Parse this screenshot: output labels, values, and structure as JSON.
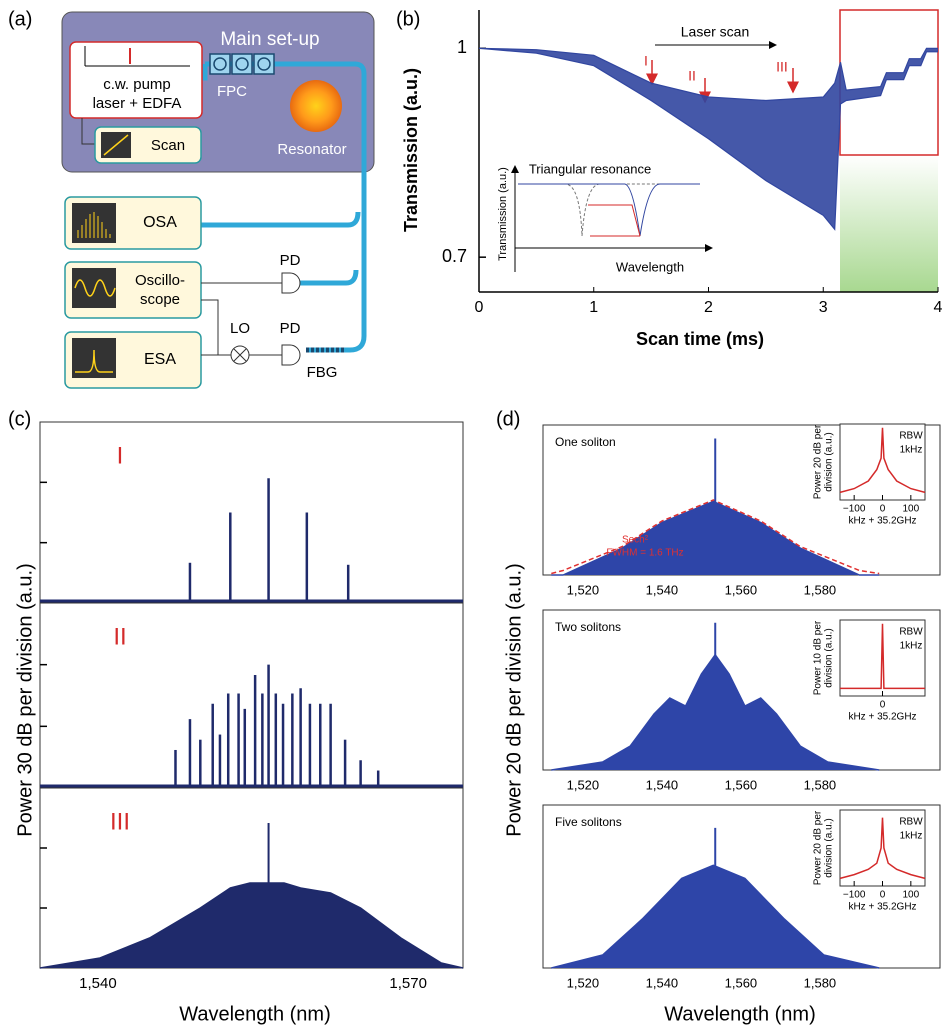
{
  "panel_labels": [
    "(a)",
    "(b)",
    "(c)",
    "(d)"
  ],
  "diagram": {
    "title": "Main set-up",
    "pump": [
      "c.w. pump",
      "laser + EDFA"
    ],
    "scan": "Scan",
    "fpc": "FPC",
    "resonator": "Resonator",
    "osa": "OSA",
    "oscilloscope": [
      "Oscillo-",
      "scope"
    ],
    "esa": "ESA",
    "pd": [
      "PD",
      "PD"
    ],
    "lo": "LO",
    "fbg": "FBG"
  },
  "chart_data": [
    {
      "type": "band",
      "xlabel": "Scan time (ms)",
      "ylabel": "Transmission (a.u.)",
      "annotations": [
        "Laser scan",
        "I",
        "II",
        "III"
      ],
      "inset": {
        "title": "Triangular resonance",
        "ylabel": "Transmission (a.u.)",
        "xlabel": "Wavelength"
      },
      "x": [
        0,
        0.5,
        1,
        1.5,
        2,
        2.5,
        3,
        3.1,
        3.15,
        3.2,
        3.5,
        3.55,
        3.7,
        3.75,
        3.85,
        3.9,
        4
      ],
      "series": [
        {
          "color": "#3146a0",
          "values": [
            1,
            0.998,
            0.99,
            0.95,
            0.93,
            0.925,
            0.93,
            0.95,
            0.98,
            0.94,
            0.945,
            0.965,
            0.965,
            0.985,
            0.985,
            1.0,
            1.0
          ]
        },
        {
          "color": "#3146a0",
          "values": [
            1,
            0.993,
            0.975,
            0.925,
            0.87,
            0.81,
            0.76,
            0.74,
            0.92,
            0.925,
            0.932,
            0.955,
            0.955,
            0.975,
            0.975,
            0.995,
            0.995
          ]
        }
      ],
      "xlim": [
        0,
        4
      ],
      "ylim": [
        0.65,
        1.055
      ],
      "xticks": [
        0,
        1,
        2,
        3,
        4
      ],
      "yticks": [
        0.7,
        1
      ]
    },
    {
      "type": "comb",
      "label": "I",
      "ylabel": "Power 30 dB per division (a.u.)",
      "color": "#1f2a6b",
      "x": [
        1548.9,
        1552.8,
        1556.5,
        1560.2,
        1564.2
      ],
      "values": [
        20,
        45,
        62,
        45,
        19
      ],
      "xlim": [
        1534.4,
        1575.3
      ],
      "ylim": [
        0,
        90
      ],
      "yticks": [
        30,
        60
      ]
    },
    {
      "type": "comb",
      "label": "II",
      "color": "#1f2a6b",
      "x": [
        1547.5,
        1548.9,
        1549.9,
        1551.1,
        1551.8,
        1552.6,
        1553.6,
        1554.2,
        1555.2,
        1555.9,
        1556.5,
        1557.2,
        1557.9,
        1558.8,
        1559.6,
        1560.5,
        1561.5,
        1562.5,
        1563.9,
        1565.4,
        1567.1
      ],
      "values": [
        18.5,
        33.5,
        23.5,
        41,
        26,
        46,
        46,
        38.5,
        55,
        46,
        60,
        46,
        41,
        46,
        48.5,
        41,
        41,
        41,
        23.5,
        13.5,
        8.5
      ],
      "xlim": [
        1534.4,
        1575.3
      ],
      "ylim": [
        0,
        90
      ],
      "yticks": [
        30,
        60
      ]
    },
    {
      "type": "area",
      "label": "III",
      "xlabel": "Wavelength  (nm)",
      "x": [
        1534.4,
        1540.2,
        1545,
        1549.9,
        1552.8,
        1554.7,
        1558,
        1559.6,
        1562.5,
        1565.4,
        1569.3,
        1573.2,
        1575.3
      ],
      "series": [
        {
          "color": "#1f2a6b",
          "values": [
            0,
            5,
            15,
            30,
            40,
            42.5,
            42.5,
            40,
            37.5,
            30,
            15,
            2.5,
            0
          ]
        }
      ],
      "peak": {
        "x": 1556.5,
        "value": 72.5
      },
      "xlim": [
        1534.4,
        1575.3
      ],
      "ylim": [
        0,
        90
      ],
      "yticks": [
        30,
        60
      ],
      "xticks": [
        {
          "value": 1540,
          "label": "1,540"
        },
        {
          "value": 1570,
          "label": "1,570"
        }
      ]
    },
    {
      "type": "area",
      "title": "One soliton",
      "ylabel": "Power 20 dB per division (a.u.)",
      "annotations": [
        "Sech²",
        "FWHM = 1.6 THz"
      ],
      "x": [
        1512,
        1515,
        1530,
        1540,
        1553,
        1565,
        1575,
        1590,
        1595
      ],
      "series": [
        {
          "color": "#2e45a8",
          "values": [
            0,
            0,
            18,
            35,
            49,
            35,
            18,
            0,
            0
          ]
        },
        {
          "color": "#e03030",
          "dashed": true,
          "values": [
            1,
            3,
            19,
            36,
            50,
            36,
            19,
            3,
            1
          ]
        }
      ],
      "peak": {
        "x": 1553.5,
        "value": 91
      },
      "xlim": [
        1509.9,
        1610.4
      ],
      "ylim": [
        0,
        100
      ],
      "xticks": [
        {
          "value": 1520,
          "label": "1,520"
        },
        {
          "value": 1540,
          "label": "1,540"
        },
        {
          "value": 1560,
          "label": "1,560"
        },
        {
          "value": 1580,
          "label": "1,580"
        }
      ]
    },
    {
      "type": "area",
      "title": "Two solitons",
      "x": [
        1512,
        1525,
        1532,
        1538,
        1542,
        1546,
        1550,
        1553.5,
        1557,
        1561,
        1565,
        1569,
        1575,
        1582,
        1595
      ],
      "series": [
        {
          "color": "#2e45a8",
          "values": [
            0,
            5,
            15,
            35,
            45,
            40,
            60,
            72,
            60,
            40,
            45,
            35,
            15,
            5,
            0
          ]
        }
      ],
      "peak": {
        "x": 1553.5,
        "value": 92
      },
      "xlim": [
        1509.9,
        1610.4
      ],
      "ylim": [
        0,
        100
      ],
      "xticks": [
        {
          "value": 1520,
          "label": "1,520"
        },
        {
          "value": 1540,
          "label": "1,540"
        },
        {
          "value": 1560,
          "label": "1,560"
        },
        {
          "value": 1580,
          "label": "1,580"
        }
      ]
    },
    {
      "type": "area",
      "title": "Five solitons",
      "xlabel": "Wavelength  (nm)",
      "x": [
        1512,
        1525,
        1535,
        1545,
        1553,
        1561,
        1571,
        1581,
        1595
      ],
      "series": [
        {
          "color": "#2e45a8",
          "values": [
            0,
            8,
            30,
            55,
            63,
            55,
            30,
            8,
            0
          ]
        }
      ],
      "peak": {
        "x": 1553.5,
        "value": 86
      },
      "xlim": [
        1509.9,
        1610.4
      ],
      "ylim": [
        0,
        100
      ],
      "xticks": [
        {
          "value": 1520,
          "label": "1,520"
        },
        {
          "value": 1540,
          "label": "1,540"
        },
        {
          "value": 1560,
          "label": "1,560"
        },
        {
          "value": 1580,
          "label": "1,580"
        }
      ]
    },
    {
      "type": "line",
      "ylabel": [
        "Power 20 dB per",
        "division (a.u.)"
      ],
      "rbw": [
        "RBW",
        "1kHz"
      ],
      "xlabel": "kHz + 35.2GHz",
      "color": "#d42a2a",
      "x": [
        -150,
        -100,
        -50,
        -20,
        -5,
        0,
        5,
        20,
        50,
        100,
        150
      ],
      "values": [
        10,
        15,
        25,
        40,
        55,
        95,
        55,
        40,
        25,
        15,
        10
      ],
      "xlim": [
        -150,
        150
      ],
      "ylim": [
        0,
        100
      ],
      "xticks": [
        {
          "value": -100,
          "label": "−100"
        },
        0,
        100
      ]
    },
    {
      "type": "line",
      "ylabel": [
        "Power 10 dB per",
        "division (a.u.)"
      ],
      "rbw": [
        "RBW",
        "1kHz"
      ],
      "xlabel": "kHz + 35.2GHz",
      "color": "#d42a2a",
      "x": [
        -150,
        -5,
        0,
        5,
        150
      ],
      "values": [
        10,
        10,
        95,
        10,
        10
      ],
      "xlim": [
        -150,
        150
      ],
      "ylim": [
        0,
        100
      ],
      "xticks": [
        0
      ]
    },
    {
      "type": "line",
      "ylabel": [
        "Power 20 dB per",
        "division (a.u.)"
      ],
      "rbw": [
        "RBW",
        "1kHz"
      ],
      "xlabel": "kHz + 35.2GHz",
      "color": "#d42a2a",
      "x": [
        -150,
        -100,
        -50,
        -20,
        -5,
        0,
        5,
        20,
        50,
        100,
        150
      ],
      "values": [
        10,
        15,
        22,
        30,
        50,
        90,
        50,
        30,
        22,
        15,
        10
      ],
      "xlim": [
        -150,
        150
      ],
      "ylim": [
        0,
        100
      ],
      "xticks": [
        {
          "value": -100,
          "label": "−100"
        },
        0,
        100
      ]
    }
  ]
}
